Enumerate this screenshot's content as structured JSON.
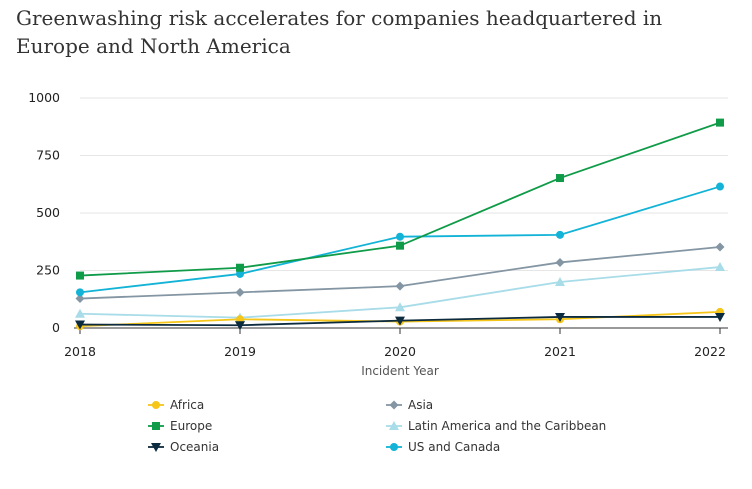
{
  "chart_data": {
    "type": "line",
    "title": "Greenwashing risk accelerates for companies headquartered in Europe and North America",
    "xlabel": "Incident Year",
    "ylabel": "",
    "x": [
      "2018",
      "2019",
      "2020",
      "2021",
      "2022"
    ],
    "ylim": [
      0,
      1000
    ],
    "yticks": [
      "0",
      "250",
      "500",
      "750",
      "1000"
    ],
    "grid": true,
    "legend_position": "bottom",
    "series": [
      {
        "name": "Africa",
        "color": "#f5c518",
        "marker": "circle",
        "values": [
          8,
          38,
          28,
          38,
          70
        ]
      },
      {
        "name": "Asia",
        "color": "#8496a3",
        "marker": "diamond",
        "values": [
          128,
          155,
          182,
          285,
          352
        ]
      },
      {
        "name": "Europe",
        "color": "#0f9b48",
        "marker": "square",
        "values": [
          228,
          262,
          358,
          652,
          893
        ]
      },
      {
        "name": "Latin America and the Caribbean",
        "color": "#a8dce8",
        "marker": "triangle-up",
        "values": [
          62,
          45,
          90,
          200,
          265
        ]
      },
      {
        "name": "Oceania",
        "color": "#0d2b3e",
        "marker": "triangle-down",
        "values": [
          15,
          12,
          32,
          48,
          48
        ]
      },
      {
        "name": "US and Canada",
        "color": "#12b3d6",
        "marker": "circle",
        "values": [
          155,
          235,
          397,
          405,
          615
        ]
      }
    ]
  }
}
